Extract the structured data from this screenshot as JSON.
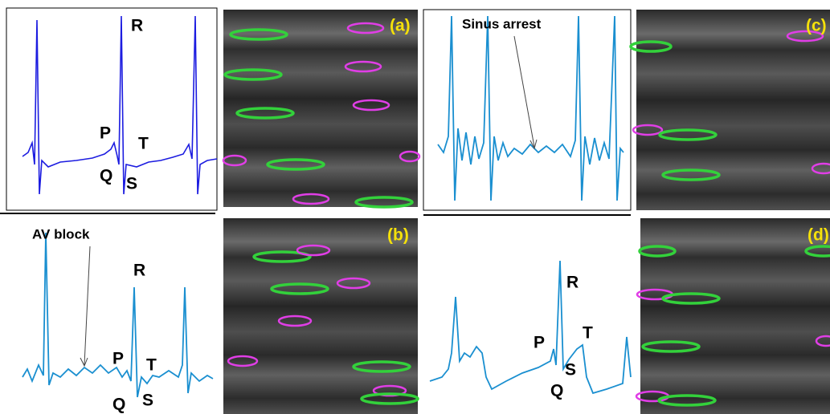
{
  "panels": [
    {
      "label": "(a)",
      "waves": {
        "R": "R",
        "P": "P",
        "T": "T",
        "Q": "Q",
        "S": "S"
      }
    },
    {
      "label": "(b)",
      "note": "AV block",
      "waves": {
        "R": "R",
        "P": "P",
        "T": "T",
        "Q": "Q",
        "S": "S"
      }
    },
    {
      "label": "(c)",
      "note": "Sinus arrest"
    },
    {
      "label": "(d)",
      "waves": {
        "R": "R",
        "P": "P",
        "T": "T",
        "Q": "Q",
        "S": "S"
      }
    }
  ]
}
